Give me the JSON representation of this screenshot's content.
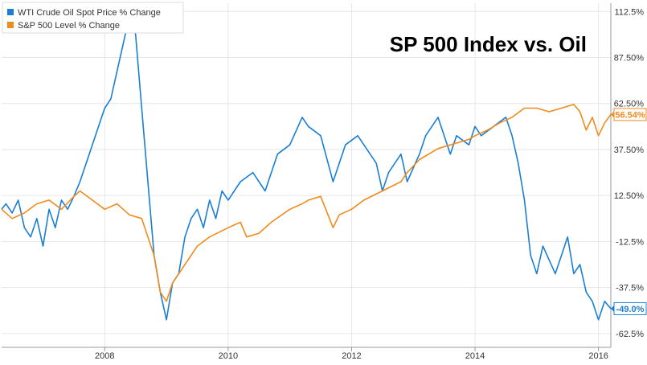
{
  "chart_data": {
    "type": "line",
    "title": "SP 500 Index vs. Oil",
    "legend_position": "top-left",
    "grid": true,
    "xlim": [
      2006.33,
      2016.2
    ],
    "ylim": [
      -70,
      117
    ],
    "x_ticks": [
      {
        "value": 2008,
        "label": "2008"
      },
      {
        "value": 2010,
        "label": "2010"
      },
      {
        "value": 2012,
        "label": "2012"
      },
      {
        "value": 2014,
        "label": "2014"
      },
      {
        "value": 2016,
        "label": "2016"
      }
    ],
    "y_ticks": [
      {
        "value": 112.5,
        "label": "112.5%"
      },
      {
        "value": 87.5,
        "label": "87.50%"
      },
      {
        "value": 62.5,
        "label": "62.50%"
      },
      {
        "value": 37.5,
        "label": "37.50%"
      },
      {
        "value": 12.5,
        "label": "12.50%"
      },
      {
        "value": -12.5,
        "label": "-12.5%"
      },
      {
        "value": -37.5,
        "label": "-37.5%"
      },
      {
        "value": -62.5,
        "label": "-62.5%"
      }
    ],
    "series": [
      {
        "name": "WTI Crude Oil Spot Price % Change",
        "color": "#1a7fd4",
        "end_label": "-49.0%",
        "x": [
          2006.33,
          2006.4,
          2006.5,
          2006.6,
          2006.7,
          2006.8,
          2006.9,
          2007.0,
          2007.1,
          2007.2,
          2007.3,
          2007.4,
          2007.5,
          2007.6,
          2007.7,
          2007.8,
          2007.9,
          2008.0,
          2008.1,
          2008.2,
          2008.3,
          2008.4,
          2008.5,
          2008.6,
          2008.7,
          2008.8,
          2008.9,
          2009.0,
          2009.1,
          2009.2,
          2009.3,
          2009.4,
          2009.5,
          2009.6,
          2009.7,
          2009.8,
          2009.9,
          2010.0,
          2010.2,
          2010.4,
          2010.6,
          2010.8,
          2011.0,
          2011.2,
          2011.3,
          2011.5,
          2011.7,
          2011.9,
          2012.1,
          2012.2,
          2012.4,
          2012.5,
          2012.6,
          2012.8,
          2012.9,
          2013.1,
          2013.2,
          2013.4,
          2013.6,
          2013.7,
          2013.9,
          2014.0,
          2014.1,
          2014.3,
          2014.5,
          2014.6,
          2014.7,
          2014.8,
          2014.9,
          2015.0,
          2015.1,
          2015.3,
          2015.4,
          2015.5,
          2015.6,
          2015.7,
          2015.8,
          2015.9,
          2016.0,
          2016.1,
          2016.2
        ],
        "values": [
          5,
          8,
          3,
          10,
          -5,
          -10,
          0,
          -15,
          5,
          -5,
          10,
          5,
          12,
          20,
          30,
          40,
          50,
          60,
          65,
          80,
          95,
          110,
          100,
          60,
          20,
          -20,
          -40,
          -55,
          -35,
          -30,
          -10,
          0,
          5,
          -5,
          10,
          0,
          15,
          10,
          20,
          25,
          15,
          35,
          40,
          55,
          50,
          45,
          20,
          40,
          45,
          40,
          30,
          15,
          25,
          35,
          20,
          35,
          45,
          55,
          35,
          45,
          40,
          50,
          45,
          50,
          55,
          45,
          30,
          10,
          -20,
          -30,
          -15,
          -30,
          -20,
          -10,
          -30,
          -25,
          -40,
          -45,
          -55,
          -45,
          -49
        ]
      },
      {
        "name": "S&P 500 Level % Change",
        "color": "#f08b1d",
        "end_label": "56.54%",
        "x": [
          2006.33,
          2006.5,
          2006.7,
          2006.9,
          2007.1,
          2007.3,
          2007.5,
          2007.6,
          2007.8,
          2008.0,
          2008.2,
          2008.4,
          2008.6,
          2008.8,
          2008.9,
          2009.0,
          2009.1,
          2009.3,
          2009.5,
          2009.7,
          2010.0,
          2010.2,
          2010.3,
          2010.5,
          2010.7,
          2011.0,
          2011.2,
          2011.3,
          2011.5,
          2011.7,
          2011.8,
          2012.0,
          2012.2,
          2012.5,
          2012.8,
          2012.9,
          2013.1,
          2013.4,
          2013.6,
          2013.9,
          2014.0,
          2014.2,
          2014.4,
          2014.6,
          2014.8,
          2015.0,
          2015.2,
          2015.4,
          2015.6,
          2015.7,
          2015.8,
          2015.9,
          2016.0,
          2016.1,
          2016.2
        ],
        "values": [
          5,
          0,
          3,
          8,
          10,
          5,
          12,
          15,
          10,
          5,
          8,
          2,
          0,
          -20,
          -40,
          -45,
          -35,
          -25,
          -15,
          -10,
          -5,
          -2,
          -10,
          -8,
          -2,
          5,
          8,
          10,
          12,
          -5,
          2,
          5,
          10,
          15,
          20,
          25,
          32,
          38,
          40,
          43,
          45,
          48,
          52,
          55,
          60,
          60,
          58,
          60,
          62,
          58,
          48,
          55,
          45,
          52,
          56.54
        ]
      }
    ]
  }
}
